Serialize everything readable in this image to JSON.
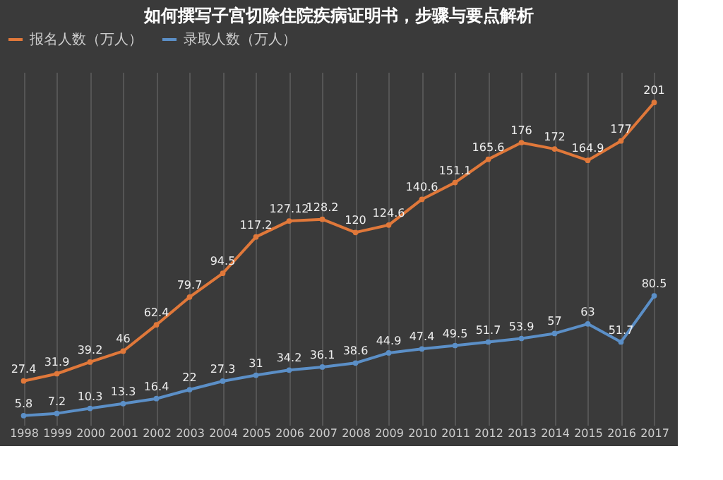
{
  "chart_data": {
    "type": "line",
    "title": "如何撰写子宫切除住院疾病证明书，步骤与要点解析",
    "categories": [
      "1998",
      "1999",
      "2000",
      "2001",
      "2002",
      "2003",
      "2004",
      "2005",
      "2006",
      "2007",
      "2008",
      "2009",
      "2010",
      "2011",
      "2012",
      "2013",
      "2014",
      "2015",
      "2016",
      "2017"
    ],
    "series": [
      {
        "name": "报名人数（万人）",
        "color": "#e0783a",
        "values": [
          27.4,
          31.9,
          39.2,
          46,
          62.4,
          79.7,
          94.5,
          117.2,
          127.12,
          128.2,
          120,
          124.6,
          140.6,
          151.1,
          165.6,
          176,
          172,
          164.9,
          177,
          201
        ]
      },
      {
        "name": "录取人数（万人）",
        "color": "#5b8fc7",
        "values": [
          5.8,
          7.2,
          10.3,
          13.3,
          16.4,
          22,
          27.3,
          31,
          34.2,
          36.1,
          38.6,
          44.9,
          47.4,
          49.5,
          51.7,
          53.9,
          57,
          63,
          51.7,
          80.5
        ]
      }
    ],
    "data_labels": true,
    "legend": "top",
    "grid": "x",
    "tick_labels": "x",
    "marker": "circle"
  }
}
